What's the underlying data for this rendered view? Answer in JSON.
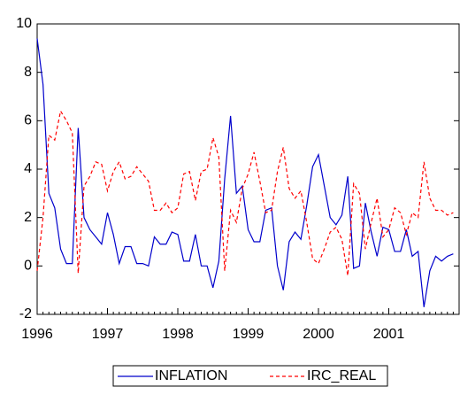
{
  "chart_data": {
    "type": "line",
    "categories": [
      "1996",
      null,
      null,
      null,
      null,
      null,
      null,
      null,
      null,
      null,
      null,
      null,
      "1997",
      null,
      null,
      null,
      null,
      null,
      null,
      null,
      null,
      null,
      null,
      null,
      "1998",
      null,
      null,
      null,
      null,
      null,
      null,
      null,
      null,
      null,
      null,
      null,
      "1999",
      null,
      null,
      null,
      null,
      null,
      null,
      null,
      null,
      null,
      null,
      null,
      "2000",
      null,
      null,
      null,
      null,
      null,
      null,
      null,
      null,
      null,
      null,
      null,
      "2001",
      null,
      null,
      null,
      null,
      null,
      null,
      null,
      null,
      null,
      null,
      null
    ],
    "series": [
      {
        "name": "INFLATION",
        "color": "#0000cc",
        "dash": "solid",
        "values": [
          9.4,
          7.5,
          3.0,
          2.4,
          0.7,
          0.1,
          0.1,
          5.7,
          2.0,
          1.5,
          1.2,
          0.9,
          2.2,
          1.3,
          0.1,
          0.8,
          0.8,
          0.1,
          0.1,
          0.0,
          1.2,
          0.9,
          0.9,
          1.4,
          1.3,
          0.2,
          0.2,
          1.3,
          0.0,
          0.0,
          -0.9,
          0.2,
          3.6,
          6.2,
          3.0,
          3.3,
          1.5,
          1.0,
          1.0,
          2.3,
          2.4,
          0.0,
          -1.0,
          1.0,
          1.4,
          1.1,
          2.5,
          4.1,
          4.6,
          3.3,
          2.0,
          1.7,
          2.1,
          3.7,
          -0.1,
          0.0,
          2.6,
          1.4,
          0.4,
          1.6,
          1.5,
          0.6,
          0.6,
          1.5,
          0.4,
          0.6,
          -1.7,
          -0.2,
          0.4,
          0.2,
          0.4,
          0.5
        ]
      },
      {
        "name": "IRC_REAL",
        "color": "#ff0000",
        "dash": "dashed",
        "values": [
          -0.2,
          2.0,
          5.4,
          5.2,
          6.4,
          6.0,
          5.5,
          -0.3,
          3.3,
          3.7,
          4.3,
          4.2,
          3.1,
          3.9,
          4.3,
          3.6,
          3.7,
          4.1,
          3.8,
          3.5,
          2.3,
          2.3,
          2.6,
          2.2,
          2.4,
          3.8,
          3.9,
          2.7,
          3.9,
          4.0,
          5.3,
          4.5,
          -0.2,
          2.3,
          1.8,
          3.2,
          3.8,
          4.7,
          3.5,
          2.2,
          2.3,
          3.9,
          4.9,
          3.2,
          2.8,
          3.1,
          1.8,
          0.3,
          0.1,
          0.7,
          1.4,
          1.6,
          1.1,
          -0.4,
          3.4,
          3.0,
          0.7,
          1.8,
          2.8,
          1.2,
          1.5,
          2.4,
          2.2,
          1.3,
          2.2,
          2.0,
          4.3,
          2.8,
          2.3,
          2.3,
          2.1,
          2.2
        ]
      }
    ],
    "ylim": [
      -2,
      10
    ],
    "yticks": [
      -2,
      0,
      2,
      4,
      6,
      8,
      10
    ],
    "grid": false,
    "legend": "bottom"
  }
}
